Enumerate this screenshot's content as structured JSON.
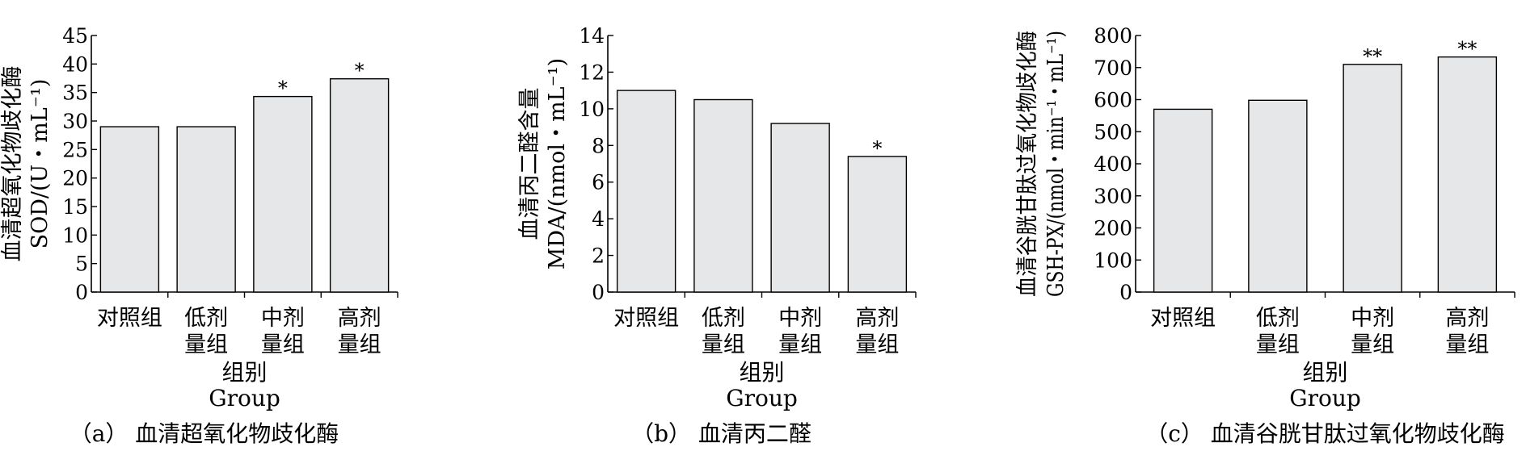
{
  "chart_data": [
    {
      "type": "bar",
      "categories": [
        "对照组",
        "低剂量组",
        "中剂量组",
        "高剂量组"
      ],
      "category_lines": [
        [
          "对照组"
        ],
        [
          "低剂",
          "量组"
        ],
        [
          "中剂",
          "量组"
        ],
        [
          "高剂",
          "量组"
        ]
      ],
      "values": [
        29.0,
        29.0,
        34.3,
        37.4
      ],
      "annotations": [
        "",
        "",
        "*",
        "*"
      ],
      "ylabel_cn": "血清超氧化物歧化酶",
      "ylabel_unit": "SOD/(U・mL⁻¹)",
      "xlabel_cn": "组别",
      "xlabel_en": "Group",
      "caption": "（a） 血清超氧化物歧化酶",
      "ylim": [
        0,
        45
      ],
      "ytick_step": 5,
      "bar_color": "#e6e7e9"
    },
    {
      "type": "bar",
      "categories": [
        "对照组",
        "低剂量组",
        "中剂量组",
        "高剂量组"
      ],
      "category_lines": [
        [
          "对照组"
        ],
        [
          "低剂",
          "量组"
        ],
        [
          "中剂",
          "量组"
        ],
        [
          "高剂",
          "量组"
        ]
      ],
      "values": [
        11.0,
        10.5,
        9.2,
        7.4
      ],
      "annotations": [
        "",
        "",
        "",
        "*"
      ],
      "ylabel_cn": "血清丙二醛含量",
      "ylabel_unit": "MDA/(nmol・mL⁻¹)",
      "xlabel_cn": "组别",
      "xlabel_en": "Group",
      "caption": "（b） 血清丙二醛",
      "ylim": [
        0,
        14
      ],
      "ytick_step": 2,
      "bar_color": "#e6e7e9"
    },
    {
      "type": "bar",
      "categories": [
        "对照组",
        "低剂量组",
        "中剂量组",
        "高剂量组"
      ],
      "category_lines": [
        [
          "对照组"
        ],
        [
          "低剂",
          "量组"
        ],
        [
          "中剂",
          "量组"
        ],
        [
          "高剂",
          "量组"
        ]
      ],
      "values": [
        570,
        598,
        710,
        733
      ],
      "annotations": [
        "",
        "",
        "**",
        "**"
      ],
      "ylabel_cn": "血清谷胱甘肽过氧化物歧化酶",
      "ylabel_unit": "GSH-PX/(nmol・min⁻¹・mL⁻¹)",
      "xlabel_cn": "组别",
      "xlabel_en": "Group",
      "caption": "（c） 血清谷胱甘肽过氧化物歧化酶",
      "ylim": [
        0,
        800
      ],
      "ytick_step": 100,
      "bar_color": "#e6e7e9"
    }
  ]
}
